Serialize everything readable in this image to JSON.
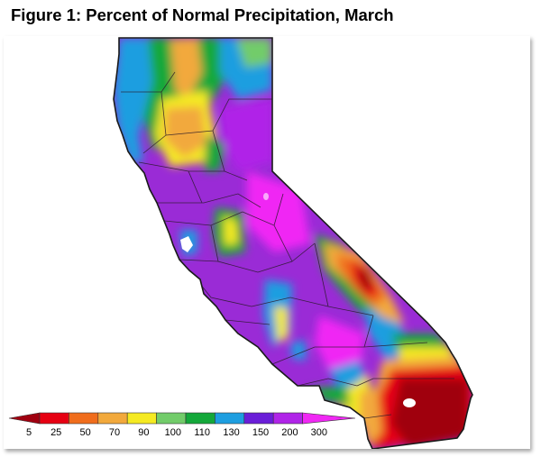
{
  "title": "Figure 1: Percent of Normal Precipitation, March",
  "legend": {
    "labels": [
      "5",
      "25",
      "50",
      "70",
      "90",
      "100",
      "110",
      "130",
      "150",
      "200",
      "300"
    ],
    "colors": [
      "#a00010",
      "#e60012",
      "#f06d1c",
      "#f2a93c",
      "#f5ea22",
      "#72cc6a",
      "#14a83a",
      "#1e9ee0",
      "#6a1ed8",
      "#b024e8",
      "#f028f4"
    ]
  },
  "map": {
    "region": "California",
    "background_color": "#9a2bd6"
  }
}
